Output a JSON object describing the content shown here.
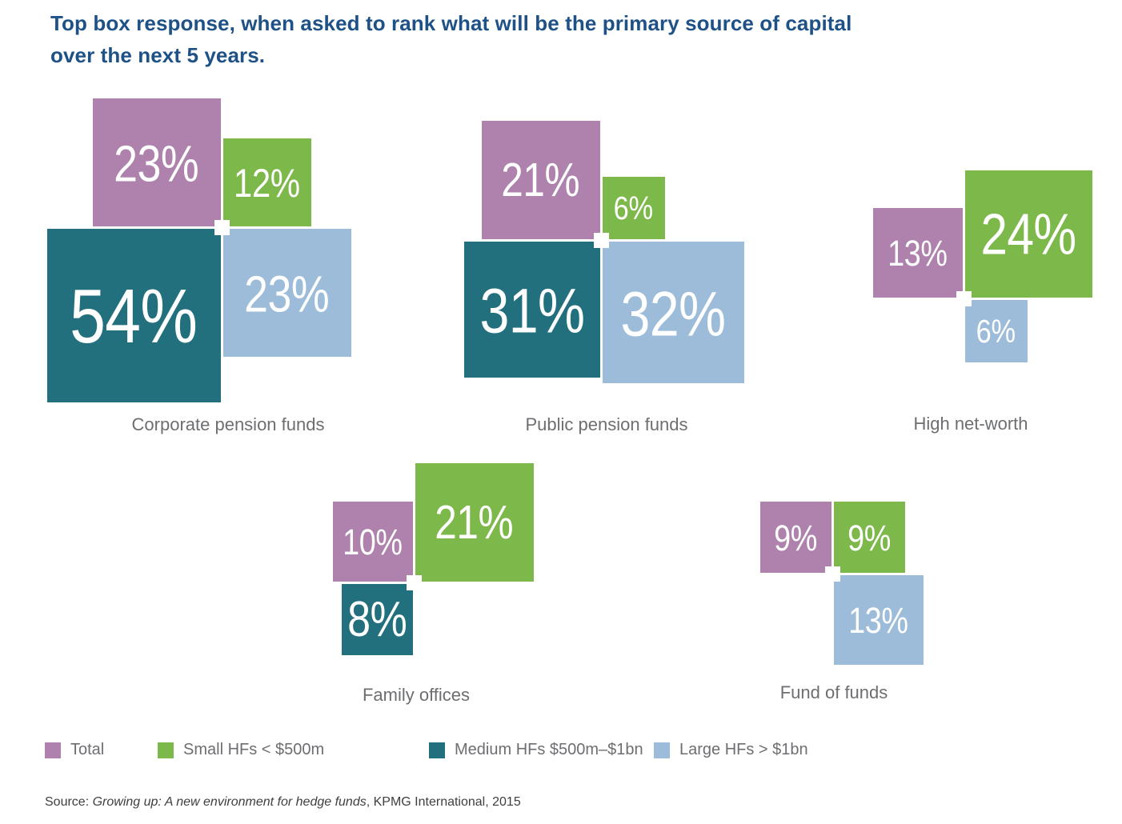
{
  "title": {
    "lines": [
      "Top box response, when asked to rank what will be the primary source of capital",
      "over the next 5 years."
    ]
  },
  "chart_data": {
    "type": "proportional-square-cluster",
    "unit": "%",
    "title": "Top box response, when asked to rank what will be the primary source of capital over the next 5 years.",
    "categories": [
      "Corporate pension funds",
      "Public pension funds",
      "High net-worth",
      "Family offices",
      "Fund of funds"
    ],
    "series": [
      {
        "name": "Total",
        "key": "total",
        "color": "#ae82ad",
        "values": [
          23,
          21,
          13,
          10,
          9
        ]
      },
      {
        "name": "Small HFs < $500m",
        "key": "small-hfs",
        "color": "#7db84a",
        "values": [
          12,
          6,
          24,
          21,
          9
        ]
      },
      {
        "name": "Medium HFs $500m–$1bn",
        "key": "medium-hfs",
        "color": "#226f7d",
        "values": [
          54,
          31,
          null,
          8,
          null
        ]
      },
      {
        "name": "Large HFs > $1bn",
        "key": "large-hfs",
        "color": "#9cbcd9",
        "values": [
          23,
          32,
          6,
          null,
          13
        ]
      }
    ],
    "value_label_format": "{value}%",
    "encoding": "square size proportional to value; the four series squares share a corner at each cluster center (Total top-left, Small top-right, Medium bottom-left, Large bottom-right)",
    "legend_position": "bottom"
  },
  "source": {
    "prefix": "Source: ",
    "italic_title": "Growing up: A new environment for hedge funds",
    "suffix": ", KPMG International, 2015"
  },
  "colors": {
    "title_text": "#1e5186",
    "label_text": "#6d6e71",
    "legend_text": "#6d6e71",
    "source_text": "#3f3f3f",
    "value_text": "#ffffff",
    "marker": "#ffffff",
    "background": "#ffffff"
  }
}
